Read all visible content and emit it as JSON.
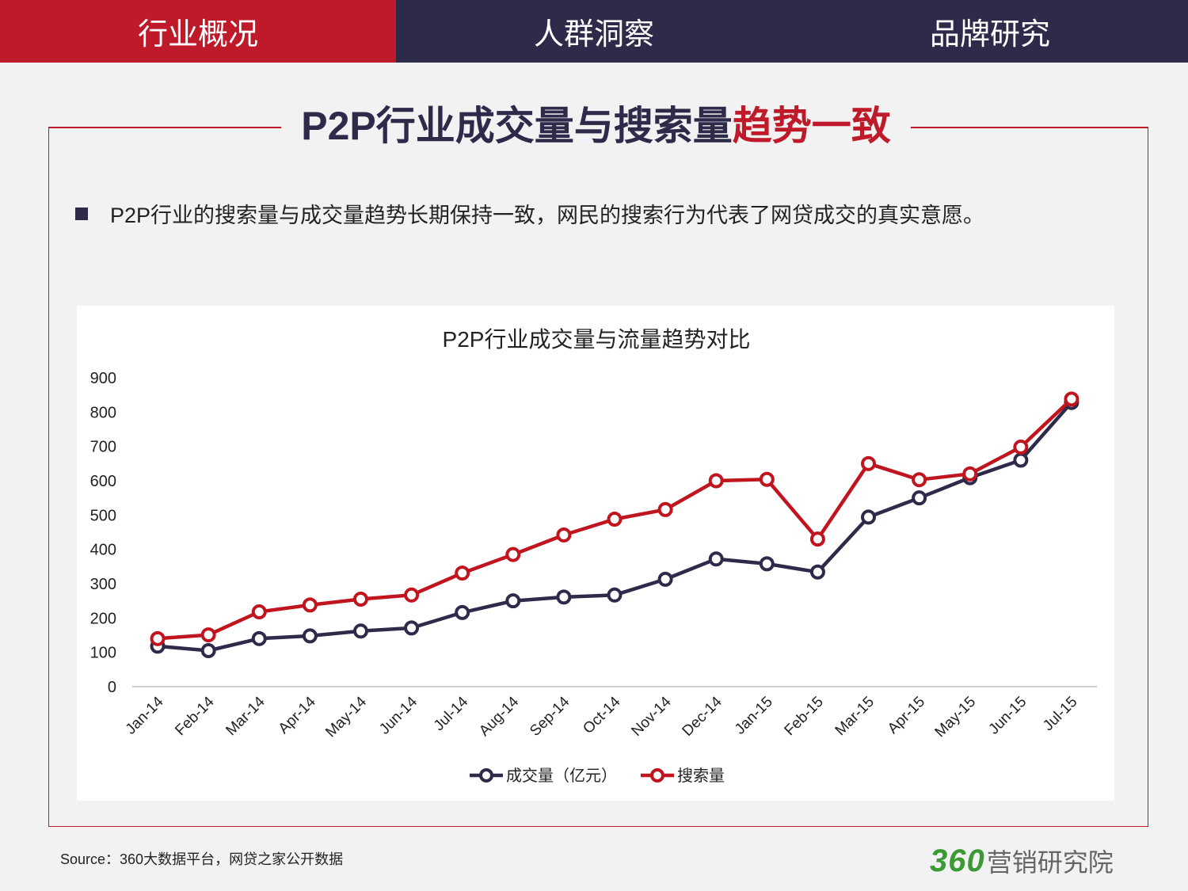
{
  "nav": {
    "tabs": [
      {
        "label": "行业概况",
        "active": true
      },
      {
        "label": "人群洞察",
        "active": false
      },
      {
        "label": "品牌研究",
        "active": false
      }
    ]
  },
  "headline": {
    "main": "P2P行业成交量与搜索量",
    "highlight": "趋势一致"
  },
  "bullet": "P2P行业的搜索量与成交量趋势长期保持一致，网民的搜索行为代表了网贷成交的真实意愿。",
  "colors": {
    "accent_red": "#be1a2a",
    "navy": "#2d2a4a",
    "logo_green": "#3c9a34"
  },
  "chart_data": {
    "type": "line",
    "title": "P2P行业成交量与流量趋势对比",
    "categories": [
      "Jan-14",
      "Feb-14",
      "Mar-14",
      "Apr-14",
      "May-14",
      "Jun-14",
      "Jul-14",
      "Aug-14",
      "Sep-14",
      "Oct-14",
      "Nov-14",
      "Dec-14",
      "Jan-15",
      "Feb-15",
      "Mar-15",
      "Apr-15",
      "May-15",
      "Jun-15",
      "Jul-15"
    ],
    "series": [
      {
        "name": "成交量（亿元）",
        "color": "#2d2a4a",
        "values": [
          118,
          105,
          140,
          148,
          162,
          171,
          216,
          250,
          261,
          267,
          313,
          372,
          358,
          334,
          494,
          550,
          609,
          660,
          828
        ]
      },
      {
        "name": "搜索量",
        "color": "#c0141e",
        "values": [
          140,
          151,
          218,
          238,
          255,
          267,
          331,
          385,
          442,
          488,
          516,
          600,
          604,
          430,
          650,
          603,
          620,
          698,
          838
        ]
      }
    ],
    "ylim": [
      0,
      900
    ],
    "yticks": [
      0,
      100,
      200,
      300,
      400,
      500,
      600,
      700,
      800,
      900
    ],
    "grid": false,
    "legend": "bottom"
  },
  "footer": {
    "source": "Source：360大数据平台，网贷之家公开数据",
    "logo_num": "360",
    "logo_text": "营销研究院"
  }
}
